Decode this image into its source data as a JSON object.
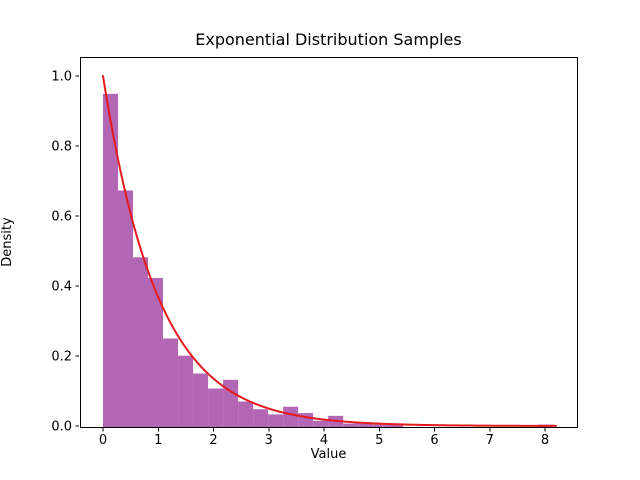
{
  "figure": {
    "background": "#ffffff",
    "text_color": "#000000"
  },
  "chart_data": {
    "type": "bar",
    "subtype": "histogram-with-pdf-overlay",
    "title": "Exponential Distribution Samples",
    "xlabel": "Value",
    "ylabel": "Density",
    "xlim": [
      -0.42,
      8.58
    ],
    "ylim": [
      0,
      1.057
    ],
    "x_ticks": [
      0,
      1,
      2,
      3,
      4,
      5,
      6,
      7,
      8
    ],
    "x_tick_labels": [
      "0",
      "1",
      "2",
      "3",
      "4",
      "5",
      "6",
      "7",
      "8"
    ],
    "y_ticks": [
      0.0,
      0.2,
      0.4,
      0.6,
      0.8,
      1.0
    ],
    "y_tick_labels": [
      "0.0",
      "0.2",
      "0.4",
      "0.6",
      "0.8",
      "1.0"
    ],
    "grid": false,
    "legend": null,
    "histogram": {
      "bin_start": 0,
      "bin_width": 0.2717,
      "bin_count": 30,
      "densities": [
        0.949,
        0.673,
        0.482,
        0.423,
        0.25,
        0.201,
        0.15,
        0.107,
        0.132,
        0.07,
        0.048,
        0.033,
        0.055,
        0.037,
        0.015,
        0.029,
        0.007,
        0.007,
        0.004,
        0.004,
        0,
        0,
        0,
        0,
        0,
        0,
        0,
        0,
        0,
        0.004
      ],
      "color": "#b366b3"
    },
    "curve": {
      "name": "exponential-pdf",
      "formula": "lambda * exp(-lambda * x)",
      "lambda": 1.0,
      "x_min": 0,
      "x_max": 8.2,
      "color": "#e41b1d",
      "line_width": 2
    }
  }
}
